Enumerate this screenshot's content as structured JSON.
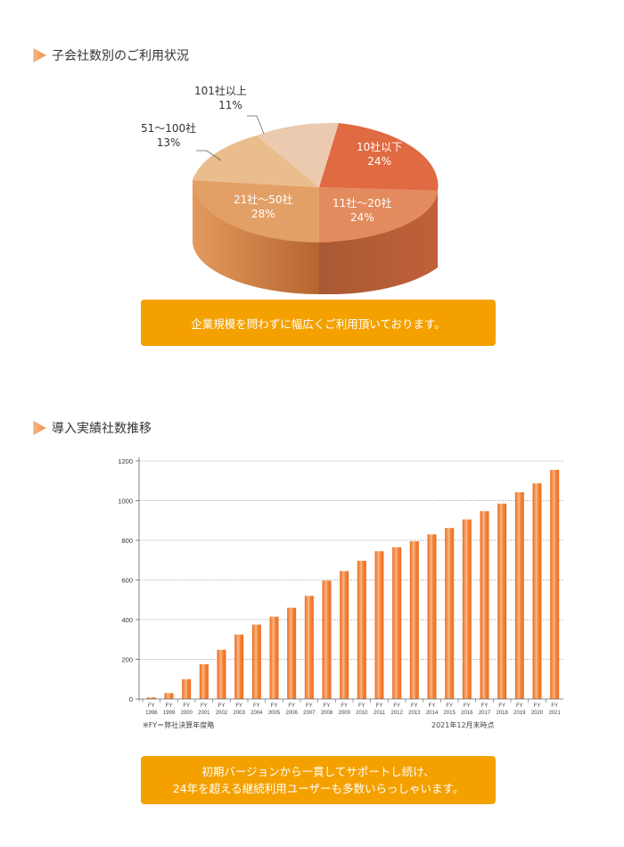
{
  "section1": {
    "title": "子会社数別のご利用状況",
    "bullet_icon": "orange-triangle-bullet-icon"
  },
  "section2": {
    "title": "導入実績社数推移",
    "bullet_icon": "orange-triangle-bullet-icon"
  },
  "colors": {
    "accent": "#f4a100",
    "bar": "#f07020",
    "bar_highlight": "#f9b98a",
    "pie_10_or_less": "#e06a42",
    "pie_11_20": "#e38b5e",
    "pie_21_50": "#e3a066",
    "pie_51_100": "#eabd8c",
    "pie_101_plus": "#ebcab0"
  },
  "banner1": {
    "text": "企業規模を問わずに幅広くご利用頂いております。"
  },
  "banner2": {
    "line1": "初期バージョンから一貫してサポートし続け、",
    "line2": "24年を超える継続利用ユーザーも多数いらっしゃいます。"
  },
  "notes": {
    "fy_note": "※FY＝弊社決算年度略",
    "as_of": "2021年12月末時点"
  },
  "pie_labels": [
    {
      "name": "10社以下",
      "pct": "24%"
    },
    {
      "name": "11社〜20社",
      "pct": "24%"
    },
    {
      "name": "21社〜50社",
      "pct": "28%"
    },
    {
      "name": "51〜100社",
      "pct": "13%"
    },
    {
      "name": "101社以上",
      "pct": "11%"
    }
  ],
  "chart_data": [
    {
      "type": "pie",
      "title": "子会社数別のご利用状況",
      "style": "3d",
      "categories": [
        "10社以下",
        "11社〜20社",
        "21社〜50社",
        "51〜100社",
        "101社以上"
      ],
      "values": [
        24,
        24,
        28,
        13,
        11
      ],
      "unit": "%"
    },
    {
      "type": "bar",
      "title": "導入実績社数推移",
      "categories": [
        "FY 1998",
        "FY 1999",
        "FY 2000",
        "FY 2001",
        "FY 2002",
        "FY 2003",
        "FY 2004",
        "FY 2005",
        "FY 2006",
        "FY 2007",
        "FY 2008",
        "FY 2009",
        "FY 2010",
        "FY 2011",
        "FY 2012",
        "FY 2013",
        "FY 2014",
        "FY 2015",
        "FY 2016",
        "FY 2017",
        "FY 2018",
        "FY 2019",
        "FY 2020",
        "FY 2021"
      ],
      "values": [
        8,
        30,
        100,
        175,
        248,
        325,
        375,
        415,
        460,
        520,
        597,
        645,
        697,
        745,
        765,
        795,
        830,
        862,
        905,
        947,
        985,
        1042,
        1087,
        1155
      ],
      "xlabel": "",
      "ylabel": "",
      "ylim": [
        0,
        1200
      ],
      "yticks": [
        0,
        200,
        400,
        600,
        800,
        1000,
        1200
      ],
      "grid": "horizontal dotted",
      "legend": "none",
      "annotations": [
        "※FY＝弊社決算年度略",
        "2021年12月末時点"
      ]
    }
  ]
}
